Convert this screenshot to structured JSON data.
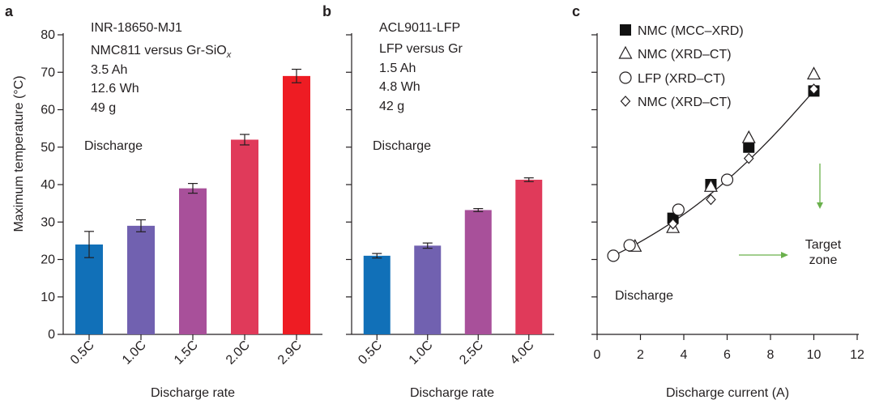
{
  "chart_data": [
    {
      "panel": "a",
      "type": "bar",
      "cell_info": [
        "INR-18650-MJ1",
        "NMC811 versus Gr-SiO",
        "3.5 Ah",
        "12.6 Wh",
        "49 g"
      ],
      "cell_info_sub": "x",
      "annotation": "Discharge",
      "xlabel": "Discharge rate",
      "ylabel": "Maximum temperature (°C)",
      "ylim": [
        0,
        80
      ],
      "yticks": [
        0,
        10,
        20,
        30,
        40,
        50,
        60,
        70,
        80
      ],
      "categories": [
        "0.5C",
        "1.0C",
        "1.5C",
        "2.0C",
        "2.9C"
      ],
      "values": [
        24,
        29,
        39,
        52,
        69
      ],
      "errors": [
        3.5,
        1.6,
        1.3,
        1.4,
        1.8
      ],
      "colors": [
        "#1170b8",
        "#7161b0",
        "#a8509a",
        "#e03a5a",
        "#ee1c23"
      ]
    },
    {
      "panel": "b",
      "type": "bar",
      "cell_info": [
        "ACL9011-LFP",
        "LFP versus Gr",
        "1.5 Ah",
        "4.8 Wh",
        "42 g"
      ],
      "annotation": "Discharge",
      "xlabel": "Discharge rate",
      "ylim": [
        0,
        80
      ],
      "categories": [
        "0.5C",
        "1.0C",
        "2.5C",
        "4.0C"
      ],
      "values": [
        21,
        23.7,
        33.2,
        41.3
      ],
      "errors": [
        0.6,
        0.7,
        0.4,
        0.5
      ],
      "colors": [
        "#1170b8",
        "#7161b0",
        "#a8509a",
        "#e03a5a"
      ]
    },
    {
      "panel": "c",
      "type": "scatter",
      "xlabel": "Discharge current (A)",
      "xlim": [
        0,
        12
      ],
      "xticks": [
        0,
        2,
        4,
        6,
        8,
        10,
        12
      ],
      "ylim": [
        0,
        80
      ],
      "annotation": "Discharge",
      "target_label": [
        "Target",
        "zone"
      ],
      "series": [
        {
          "name": "NMC (MCC–XRD)",
          "marker": "square-filled",
          "x": [
            3.5,
            5.25,
            7,
            10
          ],
          "y": [
            31,
            40,
            50,
            65
          ]
        },
        {
          "name": "NMC (XRD–CT)",
          "marker": "triangle-open",
          "x": [
            1.75,
            3.5,
            5.25,
            7,
            10
          ],
          "y": [
            23.5,
            28.5,
            39.5,
            52.5,
            69.5
          ]
        },
        {
          "name": "LFP (XRD–CT)",
          "marker": "circle-open",
          "x": [
            0.75,
            1.5,
            3.75,
            6
          ],
          "y": [
            21,
            23.8,
            33.3,
            41.3
          ]
        },
        {
          "name": "NMC (XRD–CT)",
          "marker": "diamond-open",
          "x": [
            3.5,
            5.25,
            7,
            10
          ],
          "y": [
            29.5,
            36,
            47,
            65.5
          ]
        }
      ],
      "fit": {
        "x": [
          0.75,
          2,
          4,
          6,
          8,
          10
        ],
        "y": [
          21,
          24.6,
          31.8,
          41,
          52,
          65
        ]
      },
      "arrow_color": "#6ab04c"
    }
  ]
}
